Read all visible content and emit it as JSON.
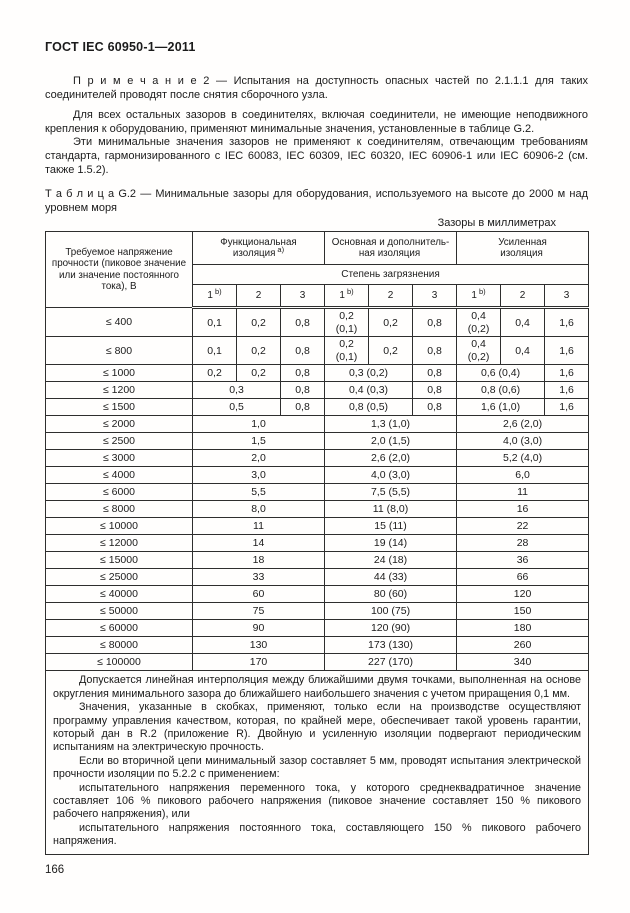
{
  "colors": {
    "text": "#1b1b1b",
    "border": "#2e2e2e",
    "background": "#ffffff"
  },
  "page": {
    "doc_header": "ГОСТ IEC 60950-1—2011",
    "page_number": "166"
  },
  "paragraphs": {
    "note2": "П р и м е ч а н и е  2 — Испытания на доступность опасных частей по 2.1.1.1 для таких соединителей проводят после снятия сборочного узла.",
    "para1": "Для всех остальных зазоров в соединителях, включая соединители, не имеющие неподвижного крепления к оборудованию, применяют минимальные значения, установленные в таблице G.2.",
    "para2": "Эти минимальные значения зазоров не применяют к соединителям, отвечающим требованиям стандарта, гармонизированного с IEC 60083, IEC 60309, IEC 60320, IEC 60906-1 или IEC 60906-2 (см. также 1.5.2)."
  },
  "table": {
    "caption": "Т а б л и ц а  G.2 — Минимальные зазоры для оборудования, используемого на высоте до 2000 м над уровнем моря",
    "units_note": "Зазоры в миллиметрах",
    "col1_header": "Требуемое напряжение\nпрочности (пиковое значение\nили значение постоянного\nтока), В",
    "groups": [
      {
        "label": "Функциональная\nизоляция",
        "sup": "a)"
      },
      {
        "label": "Основная и дополнитель-\nная изоляция",
        "sup": ""
      },
      {
        "label": "Усиленная\nизоляция",
        "sup": ""
      }
    ],
    "pollution_header": "Степень загрязнения",
    "subcols": [
      {
        "t": "1",
        "sup": "b)"
      },
      {
        "t": "2",
        "sup": ""
      },
      {
        "t": "3",
        "sup": ""
      },
      {
        "t": "1",
        "sup": "b)"
      },
      {
        "t": "2",
        "sup": ""
      },
      {
        "t": "3",
        "sup": ""
      },
      {
        "t": "1",
        "sup": "b)"
      },
      {
        "t": "2",
        "sup": ""
      },
      {
        "t": "3",
        "sup": ""
      }
    ],
    "rows": [
      {
        "label": "≤ 400",
        "cells": [
          [
            "0,1",
            1
          ],
          [
            "0,2",
            1
          ],
          [
            "0,8",
            1
          ],
          [
            "0,2\n(0,1)",
            1
          ],
          [
            "0,2",
            1
          ],
          [
            "0,8",
            1
          ],
          [
            "0,4\n(0,2)",
            1
          ],
          [
            "0,4",
            1
          ],
          [
            "1,6",
            1
          ]
        ]
      },
      {
        "label": "≤ 800",
        "cells": [
          [
            "0,1",
            1
          ],
          [
            "0,2",
            1
          ],
          [
            "0,8",
            1
          ],
          [
            "0,2\n(0,1)",
            1
          ],
          [
            "0,2",
            1
          ],
          [
            "0,8",
            1
          ],
          [
            "0,4\n(0,2)",
            1
          ],
          [
            "0,4",
            1
          ],
          [
            "1,6",
            1
          ]
        ]
      },
      {
        "label": "≤ 1000",
        "cells": [
          [
            "0,2",
            1
          ],
          [
            "0,2",
            1
          ],
          [
            "0,8",
            1
          ],
          [
            "0,3 (0,2)",
            2
          ],
          [
            "0,8",
            1
          ],
          [
            "0,6 (0,4)",
            2
          ],
          [
            "1,6",
            1
          ]
        ]
      },
      {
        "label": "≤ 1200",
        "cells": [
          [
            "0,3",
            2
          ],
          [
            "0,8",
            1
          ],
          [
            "0,4 (0,3)",
            2
          ],
          [
            "0,8",
            1
          ],
          [
            "0,8 (0,6)",
            2
          ],
          [
            "1,6",
            1
          ]
        ]
      },
      {
        "label": "≤ 1500",
        "cells": [
          [
            "0,5",
            2
          ],
          [
            "0,8",
            1
          ],
          [
            "0,8 (0,5)",
            2
          ],
          [
            "0,8",
            1
          ],
          [
            "1,6 (1,0)",
            2
          ],
          [
            "1,6",
            1
          ]
        ]
      },
      {
        "label": "≤ 2000",
        "cells": [
          [
            "1,0",
            3
          ],
          [
            "1,3 (1,0)",
            3
          ],
          [
            "2,6 (2,0)",
            3
          ]
        ]
      },
      {
        "label": "≤ 2500",
        "cells": [
          [
            "1,5",
            3
          ],
          [
            "2,0 (1,5)",
            3
          ],
          [
            "4,0 (3,0)",
            3
          ]
        ]
      },
      {
        "label": "≤ 3000",
        "cells": [
          [
            "2,0",
            3
          ],
          [
            "2,6 (2,0)",
            3
          ],
          [
            "5,2 (4,0)",
            3
          ]
        ]
      },
      {
        "label": "≤ 4000",
        "cells": [
          [
            "3,0",
            3
          ],
          [
            "4,0 (3,0)",
            3
          ],
          [
            "6,0",
            3
          ]
        ]
      },
      {
        "label": "≤ 6000",
        "cells": [
          [
            "5,5",
            3
          ],
          [
            "7,5 (5,5)",
            3
          ],
          [
            "11",
            3
          ]
        ]
      },
      {
        "label": "≤ 8000",
        "cells": [
          [
            "8,0",
            3
          ],
          [
            "11 (8,0)",
            3
          ],
          [
            "16",
            3
          ]
        ]
      },
      {
        "label": "≤ 10000",
        "cells": [
          [
            "11",
            3
          ],
          [
            "15 (11)",
            3
          ],
          [
            "22",
            3
          ]
        ]
      },
      {
        "label": "≤ 12000",
        "cells": [
          [
            "14",
            3
          ],
          [
            "19 (14)",
            3
          ],
          [
            "28",
            3
          ]
        ]
      },
      {
        "label": "≤ 15000",
        "cells": [
          [
            "18",
            3
          ],
          [
            "24 (18)",
            3
          ],
          [
            "36",
            3
          ]
        ]
      },
      {
        "label": "≤ 25000",
        "cells": [
          [
            "33",
            3
          ],
          [
            "44 (33)",
            3
          ],
          [
            "66",
            3
          ]
        ]
      },
      {
        "label": "≤ 40000",
        "cells": [
          [
            "60",
            3
          ],
          [
            "80 (60)",
            3
          ],
          [
            "120",
            3
          ]
        ]
      },
      {
        "label": "≤ 50000",
        "cells": [
          [
            "75",
            3
          ],
          [
            "100 (75)",
            3
          ],
          [
            "150",
            3
          ]
        ]
      },
      {
        "label": "≤ 60000",
        "cells": [
          [
            "90",
            3
          ],
          [
            "120 (90)",
            3
          ],
          [
            "180",
            3
          ]
        ]
      },
      {
        "label": "≤ 80000",
        "cells": [
          [
            "130",
            3
          ],
          [
            "173 (130)",
            3
          ],
          [
            "260",
            3
          ]
        ]
      },
      {
        "label": "≤ 100000",
        "cells": [
          [
            "170",
            3
          ],
          [
            "227 (170)",
            3
          ],
          [
            "340",
            3
          ]
        ]
      }
    ],
    "notes": [
      "Допускается линейная интерполяция между ближайшими двумя точками, выполненная на основе округления минимального зазора до ближайшего наибольшего значения с учетом приращения 0,1 мм.",
      "Значения, указанные в скобках, применяют, только если на производстве осуществляют программу управления качеством, которая, по крайней мере, обеспечивает такой уровень гарантии, который дан в R.2 (приложение R). Двойную и усиленную изоляции подвергают периодическим испытаниям на электрическую прочность.",
      "Если во вторичной цепи минимальный зазор составляет 5 мм, проводят испытания электрической прочности изоляции по 5.2.2 с применением:",
      "испытательного напряжения переменного тока, у которого среднеквадратичное значение составляет 106 % пикового рабочего напряжения (пиковое значение составляет 150 % пикового рабочего напряжения), или",
      "испытательного напряжения постоянного тока, составляющего 150 % пикового рабочего напряжения."
    ]
  }
}
